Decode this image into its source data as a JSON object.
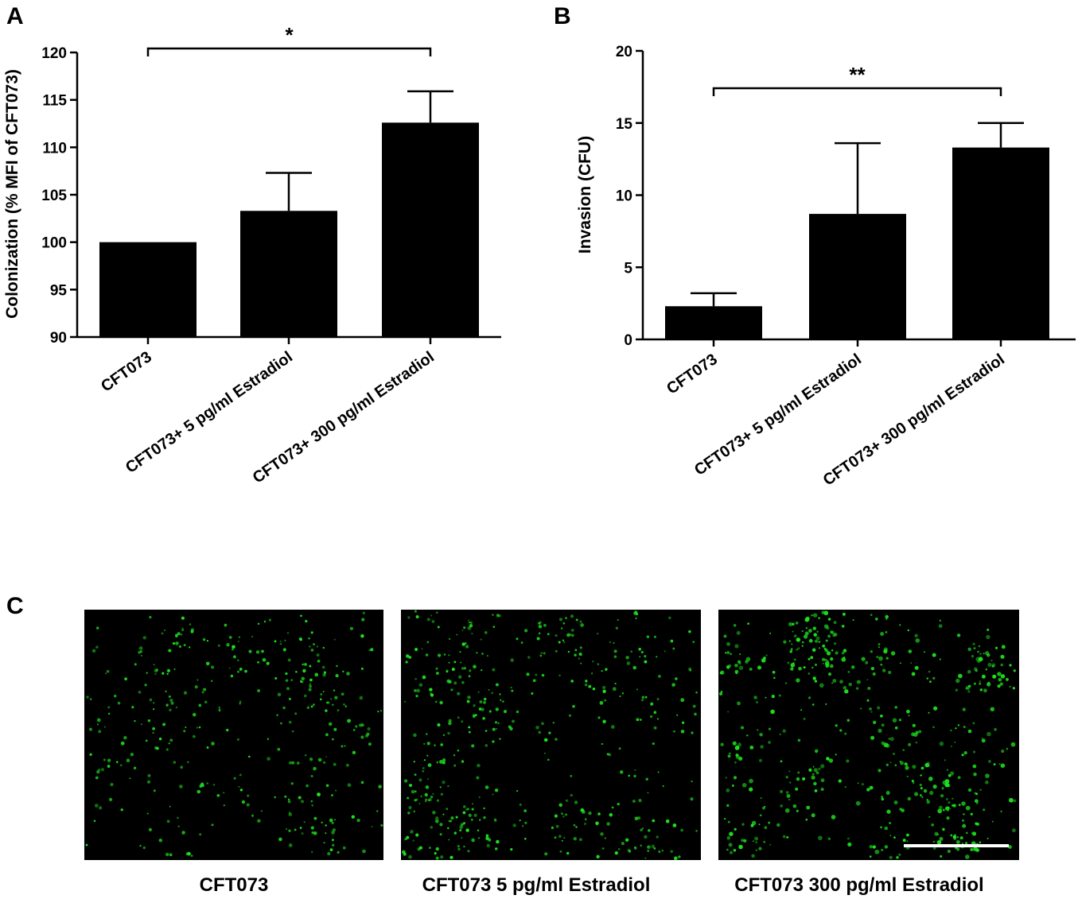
{
  "panels": {
    "a": {
      "letter": "A"
    },
    "b": {
      "letter": "B"
    },
    "c": {
      "letter": "C"
    }
  },
  "chart_data": [
    {
      "type": "bar",
      "categories": [
        "CFT073",
        "CFT073+ 5 pg/ml Estradiol",
        "CFT073+ 300 pg/ml Estradiol"
      ],
      "values": [
        100,
        103.3,
        112.6
      ],
      "errors": [
        0,
        4.0,
        3.3
      ],
      "title": "",
      "xlabel": "",
      "ylabel": "Colonization (% MFI of CFT073)",
      "ylim": [
        90,
        120
      ],
      "yticks": [
        90,
        95,
        100,
        105,
        110,
        115,
        120
      ],
      "bar_color": "#000000",
      "grid": false,
      "significance": {
        "from": 0,
        "to": 2,
        "label": "*"
      }
    },
    {
      "type": "bar",
      "categories": [
        "CFT073",
        "CFT073+ 5 pg/ml Estradiol",
        "CFT073+ 300 pg/ml Estradiol"
      ],
      "values": [
        2.3,
        8.7,
        13.3
      ],
      "errors": [
        0.9,
        4.9,
        1.7
      ],
      "title": "",
      "xlabel": "",
      "ylabel": "Invasion (CFU)",
      "ylim": [
        0,
        20
      ],
      "yticks": [
        0,
        5,
        10,
        15,
        20
      ],
      "bar_color": "#000000",
      "grid": false,
      "significance": {
        "from": 0,
        "to": 2,
        "label": "**"
      }
    }
  ],
  "micrographs": {
    "background_color": "#000000",
    "dot_color": "#1ee61e",
    "scale_bar_color": "#ffffff",
    "labels": [
      "CFT073",
      "CFT073 5 pg/ml Estradiol",
      "CFT073 300 pg/ml Estradiol"
    ],
    "relative_density": [
      1.0,
      1.35,
      1.6
    ]
  }
}
